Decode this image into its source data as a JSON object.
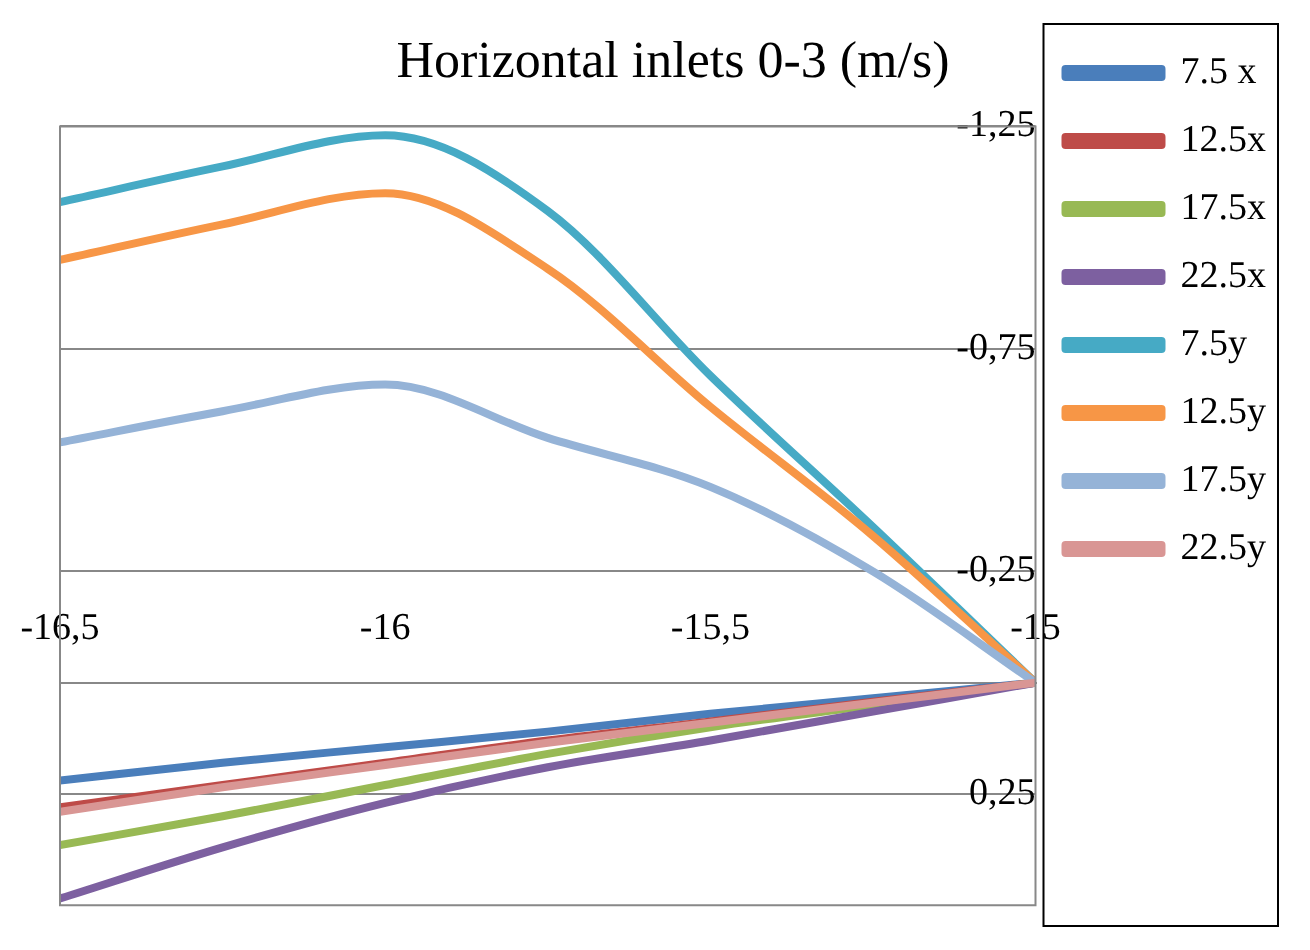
{
  "chart_data": {
    "type": "line",
    "title": "Horizontal inlets 0-3 (m/s)",
    "x": [
      -16.5,
      -16.25,
      -16,
      -15.75,
      -15.5,
      -15.25,
      -15
    ],
    "series": [
      {
        "name": "7.5 x",
        "color": "#4a7ebb",
        "values": [
          0.22,
          0.18,
          0.145,
          0.11,
          0.07,
          0.035,
          0
        ]
      },
      {
        "name": "12.5x",
        "color": "#be4b48",
        "values": [
          0.28,
          0.23,
          0.18,
          0.13,
          0.087,
          0.043,
          0
        ]
      },
      {
        "name": "17.5x",
        "color": "#98b954",
        "values": [
          0.365,
          0.3,
          0.23,
          0.16,
          0.1,
          0.05,
          0
        ]
      },
      {
        "name": "22.5x",
        "color": "#7d60a0",
        "values": [
          0.485,
          0.37,
          0.27,
          0.19,
          0.13,
          0.065,
          0
        ]
      },
      {
        "name": "7.5y",
        "color": "#46aac5",
        "values": [
          -1.08,
          -1.16,
          -1.23,
          -1.06,
          -0.69,
          -0.35,
          0
        ]
      },
      {
        "name": "12.5y",
        "color": "#f79646",
        "values": [
          -0.95,
          -1.03,
          -1.1,
          -0.93,
          -0.62,
          -0.33,
          0
        ]
      },
      {
        "name": "17.5y",
        "color": "#95b3d7",
        "values": [
          -0.54,
          -0.61,
          -0.67,
          -0.55,
          -0.44,
          -0.25,
          0
        ]
      },
      {
        "name": "22.5y",
        "color": "#d99694",
        "values": [
          0.29,
          0.235,
          0.185,
          0.135,
          0.09,
          0.045,
          0
        ]
      }
    ],
    "xlim": [
      -16.5,
      -15
    ],
    "xticks": [
      {
        "value": -16.5,
        "label": "-16,5"
      },
      {
        "value": -16,
        "label": "-16"
      },
      {
        "value": -15.5,
        "label": "-15,5"
      },
      {
        "value": -15,
        "label": "-15"
      }
    ],
    "ylim": [
      0.5,
      -1.25
    ],
    "yticks": [
      {
        "value": -1.25,
        "label": "-1,25"
      },
      {
        "value": -0.75,
        "label": "-0,75"
      },
      {
        "value": -0.25,
        "label": "-0,25"
      },
      {
        "value": 0.25,
        "label": "0,25"
      }
    ],
    "grid": "y",
    "legend": "right",
    "marker": "none",
    "line_style": "solid"
  }
}
